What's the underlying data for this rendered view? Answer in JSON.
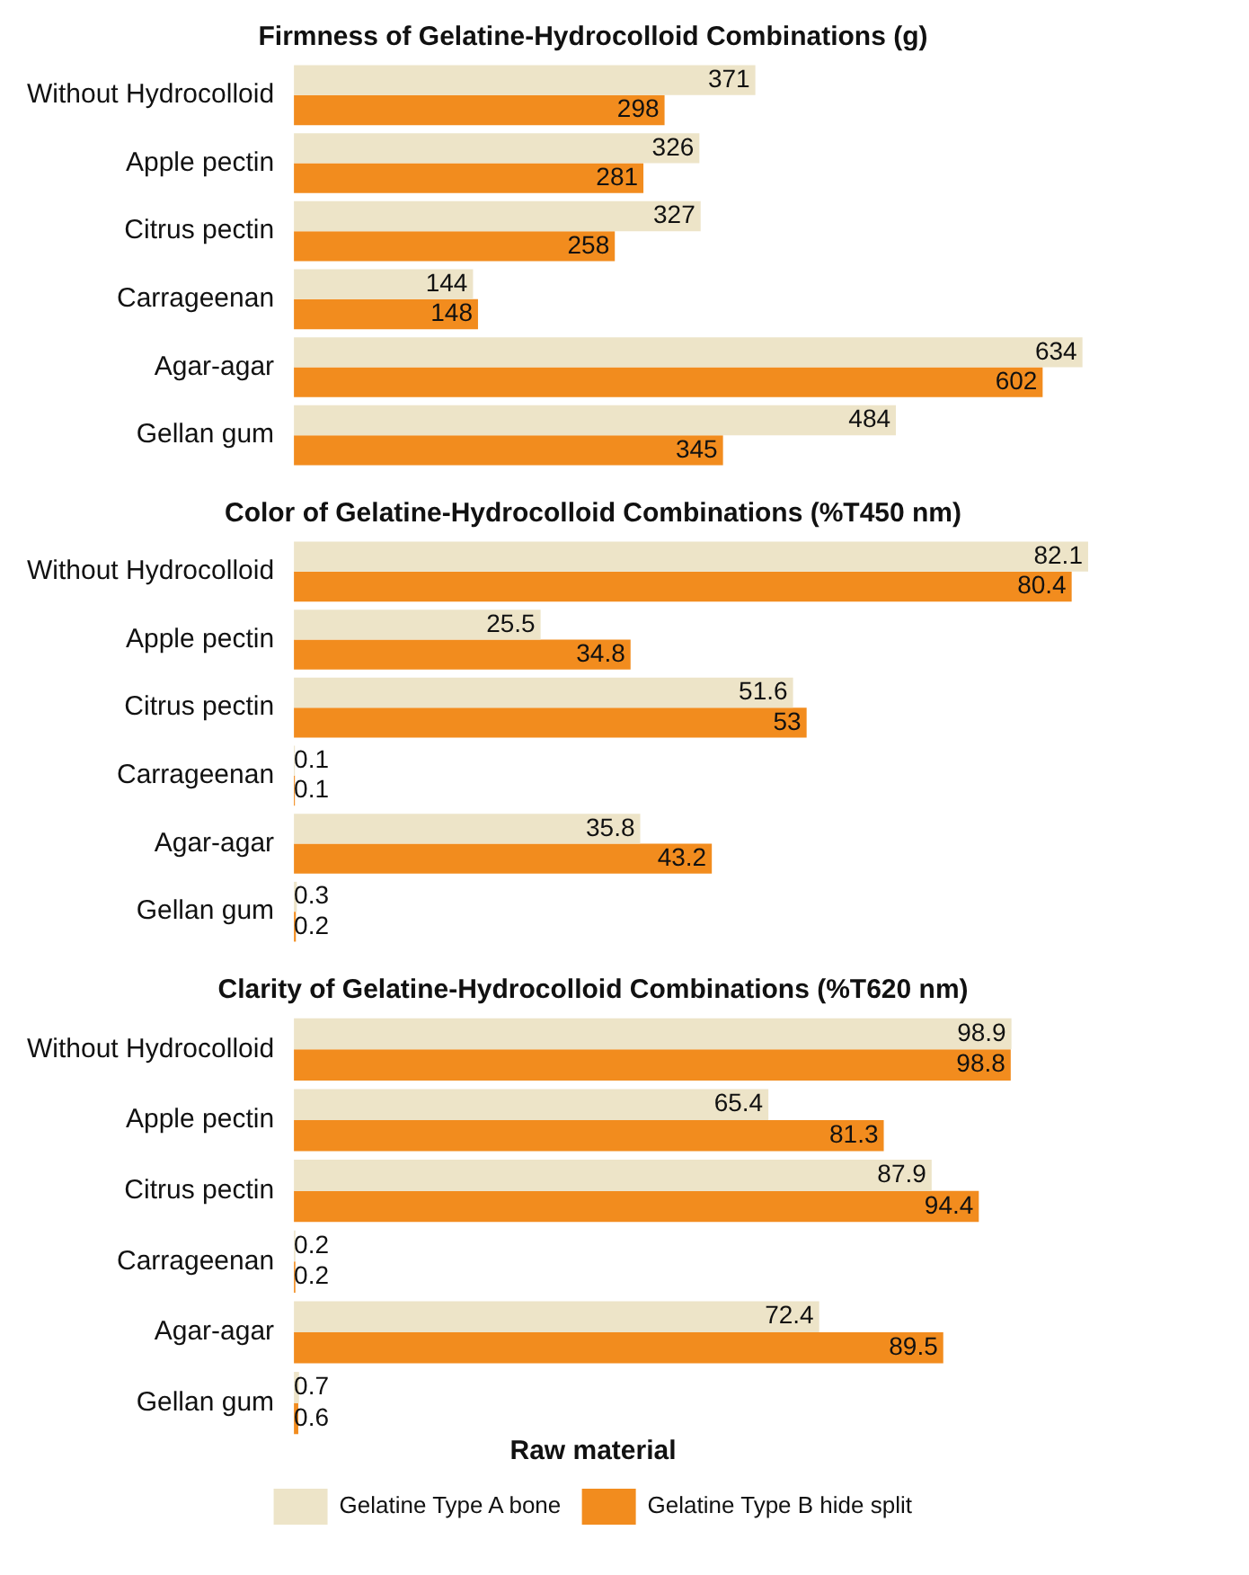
{
  "chart_data": [
    {
      "type": "bar",
      "orientation": "horizontal",
      "title": "Firmness of Gelatine-Hydrocolloid Combinations (g)",
      "categories": [
        "Without Hydrocolloid",
        "Apple pectin",
        "Citrus pectin",
        "Carrageenan",
        "Agar-agar",
        "Gellan gum"
      ],
      "series": [
        {
          "color": "#ede4c8",
          "values": [
            371,
            326,
            327,
            144,
            634,
            484
          ]
        },
        {
          "color": "#f28c1e",
          "values": [
            298,
            281,
            258,
            148,
            602,
            345
          ]
        }
      ],
      "data_labels": true,
      "tick_labels": "y"
    },
    {
      "type": "bar",
      "orientation": "horizontal",
      "title": "Color of Gelatine-Hydrocolloid Combinations (%T450 nm)",
      "categories": [
        "Without Hydrocolloid",
        "Apple pectin",
        "Citrus pectin",
        "Carrageenan",
        "Agar-agar",
        "Gellan gum"
      ],
      "series": [
        {
          "color": "#ede4c8",
          "values": [
            82.1,
            25.5,
            51.6,
            0.1,
            35.8,
            0.3
          ]
        },
        {
          "color": "#f28c1e",
          "values": [
            80.4,
            34.8,
            53,
            0.1,
            43.2,
            0.2
          ]
        }
      ],
      "data_labels": true,
      "tick_labels": "y"
    },
    {
      "type": "bar",
      "orientation": "horizontal",
      "title": "Clarity of Gelatine-Hydrocolloid Combinations (%T620 nm)",
      "categories": [
        "Without Hydrocolloid",
        "Apple pectin",
        "Citrus pectin",
        "Carrageenan",
        "Agar-agar",
        "Gellan gum"
      ],
      "series": [
        {
          "name": "Gelatine Type A bone",
          "color": "#ede4c8",
          "values": [
            98.9,
            65.4,
            87.9,
            0.2,
            72.4,
            0.7
          ]
        },
        {
          "name": "Gelatine Type B hide split",
          "color": "#f28c1e",
          "values": [
            98.8,
            81.3,
            94.4,
            0.2,
            89.5,
            0.6
          ]
        }
      ],
      "data_labels": true,
      "tick_labels": "y",
      "legend": "bottom",
      "legend_title": "Raw material"
    }
  ]
}
